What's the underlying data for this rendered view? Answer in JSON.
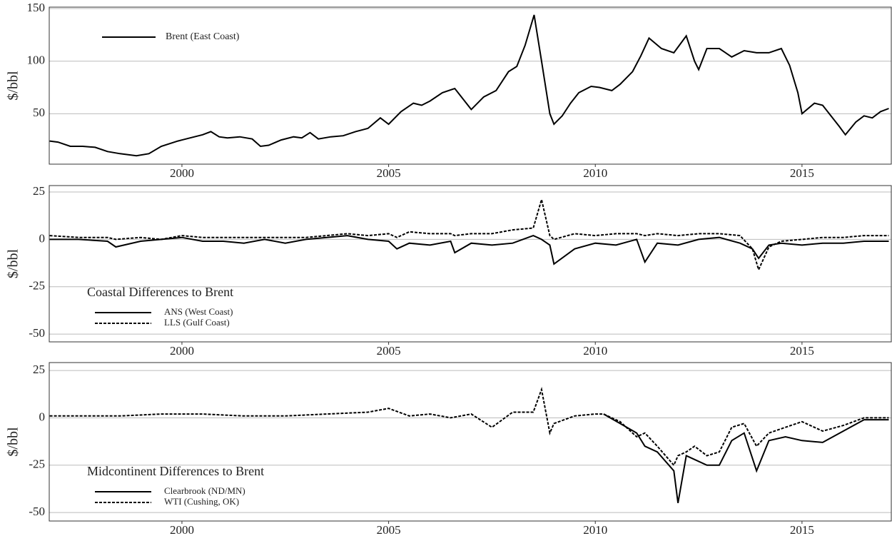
{
  "chart_data": [
    {
      "type": "line",
      "ylabel": "$/bbl",
      "legend_position": "top-left",
      "grid": true,
      "xlim": [
        1996.79,
        2017.16
      ],
      "xticks": [
        2000,
        2005,
        2010,
        2015
      ],
      "ylim": [
        2,
        151.4
      ],
      "yticks": [
        50,
        100,
        150
      ],
      "x": [
        1996.8,
        1997.0,
        1997.3,
        1997.6,
        1997.9,
        1998.2,
        1998.5,
        1998.9,
        1999.2,
        1999.5,
        1999.9,
        2000.2,
        2000.5,
        2000.7,
        2000.9,
        2001.1,
        2001.4,
        2001.7,
        2001.9,
        2002.1,
        2002.4,
        2002.7,
        2002.9,
        2003.1,
        2003.3,
        2003.6,
        2003.9,
        2004.2,
        2004.5,
        2004.8,
        2005.0,
        2005.3,
        2005.6,
        2005.8,
        2006.0,
        2006.3,
        2006.6,
        2006.9,
        2007.0,
        2007.3,
        2007.6,
        2007.9,
        2008.1,
        2008.3,
        2008.52,
        2008.7,
        2008.9,
        2009.0,
        2009.2,
        2009.4,
        2009.6,
        2009.9,
        2010.1,
        2010.4,
        2010.6,
        2010.9,
        2011.1,
        2011.3,
        2011.6,
        2011.9,
        2012.2,
        2012.4,
        2012.5,
        2012.7,
        2013.0,
        2013.3,
        2013.6,
        2013.9,
        2014.2,
        2014.5,
        2014.7,
        2014.9,
        2015.0,
        2015.3,
        2015.5,
        2015.7,
        2015.9,
        2016.05,
        2016.3,
        2016.5,
        2016.7,
        2016.9,
        2017.1
      ],
      "series": [
        {
          "name": "Brent (East Coast)",
          "color": "#000000",
          "dashed": false,
          "values": [
            24,
            23,
            19,
            19,
            18,
            14,
            12,
            10,
            12,
            19,
            24,
            27,
            30,
            33,
            28,
            27,
            28,
            26,
            19,
            20,
            25,
            28,
            27,
            32,
            26,
            28,
            29,
            33,
            36,
            46,
            40,
            52,
            60,
            58,
            62,
            70,
            74,
            59,
            54,
            66,
            72,
            90,
            95,
            115,
            144,
            100,
            50,
            40,
            48,
            60,
            70,
            76,
            75,
            72,
            78,
            90,
            105,
            122,
            112,
            108,
            124,
            100,
            92,
            112,
            112,
            104,
            110,
            108,
            108,
            112,
            96,
            70,
            50,
            60,
            58,
            48,
            38,
            30,
            42,
            48,
            46,
            52,
            55
          ]
        }
      ]
    },
    {
      "type": "line",
      "ylabel": "$/bbl",
      "legend_title": "Coastal Differences to Brent",
      "legend_position": "bottom-left",
      "grid": true,
      "xlim": [
        1996.79,
        2017.16
      ],
      "xticks": [
        2000,
        2005,
        2010,
        2015
      ],
      "ylim": [
        -54.1,
        28.4
      ],
      "yticks": [
        -50,
        -25,
        0,
        25
      ],
      "x": [
        1996.8,
        1997.5,
        1998.2,
        1998.4,
        1999,
        1999.5,
        2000,
        2000.5,
        2001,
        2001.5,
        2002,
        2002.5,
        2003,
        2003.5,
        2004,
        2004.5,
        2005,
        2005.2,
        2005.5,
        2006,
        2006.5,
        2006.6,
        2007,
        2007.5,
        2008,
        2008.5,
        2008.7,
        2008.9,
        2009,
        2009.5,
        2010,
        2010.5,
        2011,
        2011.2,
        2011.5,
        2012,
        2012.5,
        2013,
        2013.5,
        2013.8,
        2013.95,
        2014.2,
        2014.5,
        2015,
        2015.5,
        2016,
        2016.5,
        2017.1
      ],
      "series": [
        {
          "name": "ANS (West Coast)",
          "color": "#000000",
          "dashed": false,
          "values": [
            0,
            0,
            -1,
            -4,
            -1,
            0,
            1,
            -1,
            -1,
            -2,
            0,
            -2,
            0,
            1,
            2,
            0,
            -1,
            -5,
            -2,
            -3,
            -1,
            -7,
            -2,
            -3,
            -2,
            2,
            0,
            -3,
            -13,
            -5,
            -2,
            -3,
            0,
            -12,
            -2,
            -3,
            0,
            1,
            -2,
            -5,
            -10,
            -3,
            -2,
            -3,
            -2,
            -2,
            -1,
            -1
          ]
        },
        {
          "name": "LLS (Gulf Coast)",
          "color": "#000000",
          "dashed": true,
          "values": [
            2,
            1,
            1,
            0,
            1,
            0,
            2,
            1,
            1,
            1,
            1,
            1,
            1,
            2,
            3,
            2,
            3,
            1,
            4,
            3,
            3,
            2,
            3,
            3,
            5,
            6,
            21,
            2,
            0,
            3,
            2,
            3,
            3,
            2,
            3,
            2,
            3,
            3,
            2,
            -5,
            -16,
            -4,
            -1,
            0,
            1,
            1,
            2,
            2
          ]
        }
      ]
    },
    {
      "type": "line",
      "ylabel": "$/bbl",
      "legend_title": "Midcontinent Differences to Brent",
      "legend_position": "bottom-left",
      "grid": true,
      "xlim": [
        1996.79,
        2017.16
      ],
      "xticks": [
        2000,
        2005,
        2010,
        2015
      ],
      "ylim": [
        -54.5,
        29.2
      ],
      "yticks": [
        -50,
        -25,
        0,
        25
      ],
      "x": [
        1996.8,
        1997.5,
        1998.5,
        1999.5,
        2000.5,
        2001.5,
        2002.5,
        2003.5,
        2004.5,
        2005,
        2005.5,
        2006,
        2006.5,
        2007,
        2007.5,
        2008,
        2008.5,
        2008.7,
        2008.9,
        2009,
        2009.5,
        2010,
        2010.2,
        2010.6,
        2011,
        2011.2,
        2011.5,
        2011.9,
        2012,
        2012.2,
        2012.4,
        2012.7,
        2013,
        2013.3,
        2013.6,
        2013.9,
        2014.2,
        2014.6,
        2015,
        2015.5,
        2016,
        2016.5,
        2017.1
      ],
      "series": [
        {
          "name": "Clearbrook (ND/MN)",
          "color": "#000000",
          "dashed": false,
          "values": [
            null,
            null,
            null,
            null,
            null,
            null,
            null,
            null,
            null,
            null,
            null,
            null,
            null,
            null,
            null,
            null,
            null,
            null,
            null,
            null,
            null,
            null,
            2,
            -3,
            -8,
            -15,
            -18,
            -28,
            -45,
            -20,
            -22,
            -25,
            -25,
            -12,
            -8,
            -28,
            -12,
            -10,
            -12,
            -13,
            -7,
            -1,
            -1
          ]
        },
        {
          "name": "WTI (Cushing, OK)",
          "color": "#000000",
          "dashed": true,
          "values": [
            1,
            1,
            1,
            2,
            2,
            1,
            1,
            2,
            3,
            5,
            1,
            2,
            0,
            2,
            -5,
            3,
            3,
            15,
            -8,
            -3,
            1,
            2,
            2,
            -2,
            -10,
            -8,
            -15,
            -25,
            -20,
            -18,
            -15,
            -20,
            -18,
            -5,
            -3,
            -15,
            -8,
            -5,
            -2,
            -7,
            -4,
            0,
            0
          ]
        }
      ]
    }
  ]
}
